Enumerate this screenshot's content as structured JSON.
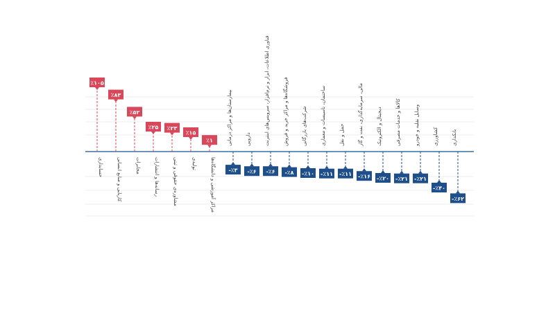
{
  "chart_data": {
    "type": "bar",
    "categories": [
      "حسابداری",
      "کاریابی و منابع انسانی",
      "مخابرات",
      "رسانه‌ها و انتشارات",
      "مشاوره‌ی حقوقی و ثبتی",
      "تولیدی",
      "مراکز آموزشی و دانشگاه‌ها",
      "بیمارستان‌ها و مراکز درمانی",
      "دارویی",
      "فناوری اطلاعات، ابزار و نرم‌افزار، سرویس‌های اینترنت",
      "فروشگاه‌ها و مراکز خرید و فروش",
      "شرکت‌های بازرگانی",
      "ساختمان، تاسیسات و معماری",
      "حمل و نقل",
      "مالی، سرمایه‌گذاری، نفت و گاز",
      "دیجیتال و الکترونیک",
      "کالاها و خدمات مصرفی",
      "وسایل نقلیه و خودرو",
      "کشاورزی",
      "بانکداری"
    ],
    "values": [
      105,
      83,
      52,
      25,
      23,
      15,
      1,
      -3,
      -6,
      -6,
      -8,
      -10,
      -11,
      -11,
      -16,
      -20,
      -21,
      -21,
      -40,
      -62
    ],
    "value_labels": [
      "٪۱۰۵",
      "٪۸۳",
      "٪۵۲",
      "٪۲۵",
      "٪۲۳",
      "٪۱۵",
      "٪۱",
      "-٪۳",
      "-٪۶",
      "-٪۶",
      "-٪۸",
      "-٪۱۰",
      "-٪۱۱",
      "-٪۱۱",
      "-٪۱۶",
      "-٪۲۰",
      "-٪۲۱",
      "-٪۲۱",
      "-٪۴۰",
      "-٪۶۲"
    ],
    "positive_color": "#d9475b",
    "negative_color": "#1f4f8a"
  }
}
